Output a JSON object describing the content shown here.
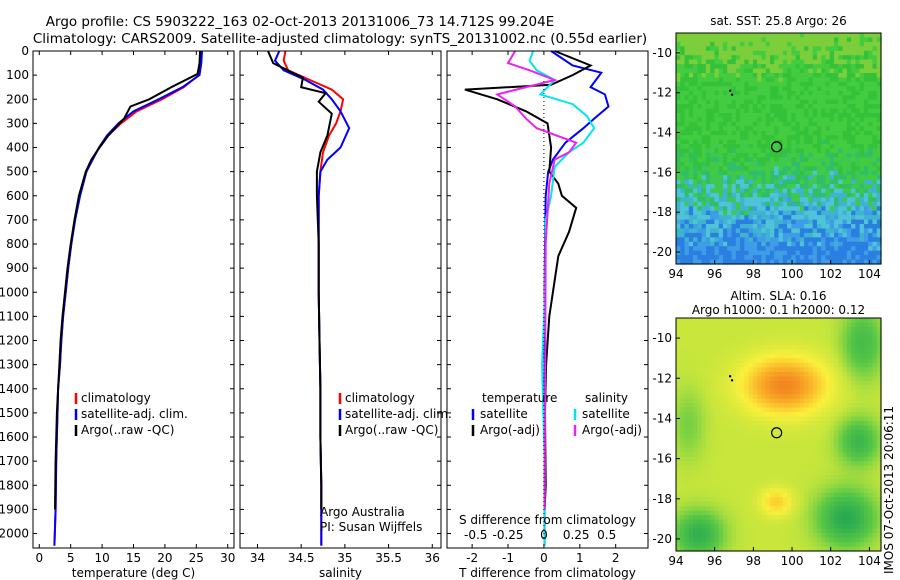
{
  "header": {
    "line1": "Argo profile: CS 5903222_163 02-Oct-2013 20131006_73 14.712S 99.204E",
    "line2": "Climatology: CARS2009. Satellite-adjusted climatology: synTS_20131002.nc (0.55d earlier)"
  },
  "colors": {
    "climatology": "#ff0000",
    "satellite": "#0000ff",
    "argo": "#000000",
    "salinity_satellite": "#00e5ee",
    "salinity_argo": "#ee22ee"
  },
  "footer": {
    "imos_stamp": "IMOS 07-Oct-2013 20:06:11",
    "argo_australia": "Argo Australia",
    "pi": "PI: Susan Wijffels"
  },
  "chart_data": [
    {
      "type": "line",
      "xlabel": "temperature (deg C)",
      "ylabel": "",
      "xlim": [
        -1,
        31
      ],
      "ylim": [
        2060,
        0
      ],
      "xticks": [
        "0",
        "5",
        "10",
        "15",
        "20",
        "25",
        "30"
      ],
      "yticks": [
        "0",
        "100",
        "200",
        "300",
        "400",
        "500",
        "600",
        "700",
        "800",
        "900",
        "1000",
        "1100",
        "1200",
        "1300",
        "1400",
        "1500",
        "1600",
        "1700",
        "1800",
        "1900",
        "2000"
      ],
      "legend": [
        "climatology",
        "satellite-adj. clim.",
        "Argo(..raw -QC)"
      ],
      "legend_position": "lower-center",
      "series": [
        {
          "name": "climatology",
          "color": "#ff0000",
          "x": [
            25.8,
            25.7,
            25.4,
            23,
            19.5,
            15.5,
            13,
            11,
            9.5,
            8.4,
            7.5,
            6.4,
            5.7,
            5.1,
            4.6,
            4.2,
            3.8,
            3.5,
            3.3,
            3,
            2.9,
            2.7,
            2.6,
            2.4
          ],
          "y": [
            0,
            50,
            100,
            150,
            200,
            250,
            300,
            350,
            400,
            450,
            500,
            600,
            700,
            800,
            900,
            1000,
            1100,
            1200,
            1300,
            1400,
            1500,
            1700,
            1900,
            2050
          ]
        },
        {
          "name": "satellite-adj. clim.",
          "color": "#0000ff",
          "x": [
            25.9,
            25.8,
            25.5,
            22.8,
            19,
            15,
            12.6,
            10.8,
            9.5,
            8.5,
            7.5,
            6.5,
            5.7,
            5.1,
            4.6,
            4.2,
            3.8,
            3.5,
            3.3,
            3,
            2.9,
            2.7,
            2.6,
            2.4
          ],
          "y": [
            0,
            50,
            100,
            150,
            200,
            250,
            300,
            350,
            400,
            450,
            500,
            600,
            700,
            800,
            900,
            1000,
            1100,
            1200,
            1300,
            1400,
            1500,
            1700,
            1900,
            2050
          ]
        },
        {
          "name": "Argo(..raw -QC)",
          "color": "#000000",
          "x": [
            25.6,
            25.5,
            25.2,
            21,
            17.5,
            14.5,
            13.5,
            11,
            9.6,
            8.3,
            7.4,
            6.3,
            5.6,
            5,
            4.5,
            4.1,
            3.7,
            3.4,
            3.2,
            3,
            2.8,
            2.6,
            2.5
          ],
          "y": [
            0,
            50,
            95,
            150,
            200,
            230,
            280,
            350,
            400,
            450,
            500,
            600,
            700,
            800,
            900,
            1000,
            1100,
            1200,
            1300,
            1400,
            1500,
            1700,
            1900
          ]
        }
      ]
    },
    {
      "type": "line",
      "xlabel": "salinity",
      "ylabel": "",
      "xlim": [
        33.8,
        36.1
      ],
      "ylim": [
        2060,
        0
      ],
      "xticks": [
        "34",
        "34.5",
        "35",
        "35.5",
        "36"
      ],
      "legend": [
        "climatology",
        "satellite-adj. clim.",
        "Argo(..raw -QC)"
      ],
      "legend_position": "lower-right",
      "series": [
        {
          "name": "climatology",
          "color": "#ff0000",
          "x": [
            34.32,
            34.3,
            34.35,
            34.6,
            34.85,
            34.98,
            34.95,
            34.9,
            34.82,
            34.75,
            34.72,
            34.7,
            34.7,
            34.7,
            34.7,
            34.71,
            34.72,
            34.72,
            34.73,
            34.73,
            34.73,
            34.73
          ],
          "y": [
            0,
            40,
            80,
            120,
            160,
            200,
            250,
            300,
            350,
            420,
            500,
            600,
            700,
            800,
            1000,
            1200,
            1400,
            1600,
            1800,
            1900,
            2000,
            2050
          ]
        },
        {
          "name": "satellite-adj. clim.",
          "color": "#0000ff",
          "x": [
            34.25,
            34.2,
            34.3,
            34.55,
            34.75,
            34.85,
            34.95,
            35.05,
            34.95,
            34.8,
            34.72,
            34.7,
            34.7,
            34.7,
            34.7,
            34.71,
            34.72,
            34.72,
            34.73,
            34.73,
            34.73,
            34.73
          ],
          "y": [
            0,
            40,
            80,
            120,
            160,
            200,
            250,
            320,
            400,
            450,
            500,
            600,
            700,
            800,
            1000,
            1200,
            1400,
            1600,
            1800,
            1900,
            2000,
            2050
          ]
        },
        {
          "name": "Argo(..raw -QC)",
          "color": "#000000",
          "x": [
            34.12,
            34.18,
            34.4,
            34.52,
            34.5,
            34.78,
            34.7,
            34.85,
            34.8,
            34.72,
            34.68,
            34.68,
            34.69,
            34.7,
            34.7,
            34.71,
            34.72,
            34.72,
            34.73,
            34.73
          ],
          "y": [
            0,
            50,
            90,
            110,
            150,
            175,
            210,
            260,
            350,
            420,
            500,
            600,
            700,
            800,
            1000,
            1200,
            1400,
            1600,
            1800,
            1900
          ]
        }
      ]
    },
    {
      "type": "line",
      "xlabel": "T difference from climatology",
      "xlabel2": "S difference from climatology",
      "xlim": [
        -2.7,
        2.9
      ],
      "ylim": [
        2060,
        0
      ],
      "xticks": [
        "-2",
        "-1",
        "0",
        "1",
        "2"
      ],
      "xticks_salinity": [
        "-0.5",
        "-0.25",
        "0",
        "0.25",
        "0.5"
      ],
      "legend_temperature": {
        "title": "temperature",
        "entries": [
          "satellite",
          "Argo(-adj)"
        ]
      },
      "legend_salinity": {
        "title": "salinity",
        "entries": [
          "satellite",
          "Argo(-adj)"
        ]
      },
      "legend_position": "lower-center",
      "series": [
        {
          "name": "satellite",
          "group": "temperature",
          "color": "#0000ff",
          "x": [
            0.2,
            0.8,
            1.6,
            1.5,
            1.3,
            1.7,
            1.8,
            1.4,
            1.1,
            0.6,
            0.25,
            0.12,
            0.05,
            0.03,
            0.02,
            0.02,
            0.02,
            0.02
          ],
          "y": [
            0,
            60,
            90,
            110,
            150,
            180,
            230,
            280,
            320,
            380,
            450,
            500,
            600,
            800,
            1000,
            1400,
            1800,
            2050
          ]
        },
        {
          "name": "Argo(-adj)",
          "group": "temperature",
          "color": "#000000",
          "x": [
            0.3,
            1.3,
            0.8,
            0.2,
            -2.2,
            -1.3,
            -0.5,
            0.1,
            0.2,
            0.15,
            0.4,
            0.5,
            0.9,
            0.7,
            0.4,
            0.3,
            0.15,
            0.06,
            0.03,
            0.05,
            0.02
          ],
          "y": [
            0,
            60,
            100,
            140,
            160,
            200,
            250,
            300,
            400,
            500,
            550,
            600,
            650,
            750,
            850,
            950,
            1100,
            1300,
            1500,
            1800,
            1900
          ]
        },
        {
          "name": "satellite",
          "group": "salinity",
          "color": "#00e5ee",
          "x": [
            -0.3,
            -0.4,
            -0.2,
            0.3,
            -0.1,
            0.8,
            1.2,
            1.4,
            1.1,
            0.7,
            0.3,
            0.2,
            0.05,
            0.03,
            -0.05,
            0.02,
            0.02
          ],
          "y": [
            0,
            40,
            80,
            120,
            180,
            220,
            270,
            320,
            380,
            420,
            480,
            600,
            700,
            1000,
            1300,
            1700,
            2050
          ]
        },
        {
          "name": "Argo(-adj)",
          "group": "salinity",
          "color": "#ee22ee",
          "x": [
            -0.8,
            -1.0,
            -0.4,
            0.3,
            -1.3,
            -0.8,
            -0.5,
            -0.2,
            0.9,
            0.7,
            0.3,
            0.15,
            0.05,
            0.02
          ],
          "y": [
            0,
            50,
            80,
            120,
            180,
            230,
            280,
            320,
            380,
            420,
            450,
            550,
            800,
            1900
          ]
        }
      ]
    },
    {
      "type": "heatmap",
      "title": "sat. SST: 25.8  Argo: 26",
      "xlim": [
        94,
        104.6
      ],
      "ylim": [
        -20.6,
        -9.0
      ],
      "xticks": [
        "94",
        "96",
        "98",
        "100",
        "102",
        "104"
      ],
      "yticks": [
        "-10",
        "-12",
        "-14",
        "-16",
        "-18",
        "-20"
      ],
      "profile_position": {
        "lon": 99.204,
        "lat": -14.712
      },
      "earlier_positions": [
        {
          "lon": 96.8,
          "lat": -11.9
        },
        {
          "lon": 96.9,
          "lat": -12.1
        }
      ]
    },
    {
      "type": "heatmap",
      "title": "Altim. SLA: 0.16",
      "subtitle": "Argo h1000: 0.1  h2000: 0.12",
      "xlim": [
        94,
        104.6
      ],
      "ylim": [
        -20.6,
        -9.0
      ],
      "xticks": [
        "94",
        "96",
        "98",
        "100",
        "102",
        "104"
      ],
      "yticks": [
        "-10",
        "-12",
        "-14",
        "-16",
        "-18",
        "-20"
      ],
      "profile_position": {
        "lon": 99.204,
        "lat": -14.712
      },
      "earlier_positions": [
        {
          "lon": 96.8,
          "lat": -11.9
        },
        {
          "lon": 96.9,
          "lat": -12.1
        }
      ]
    }
  ]
}
